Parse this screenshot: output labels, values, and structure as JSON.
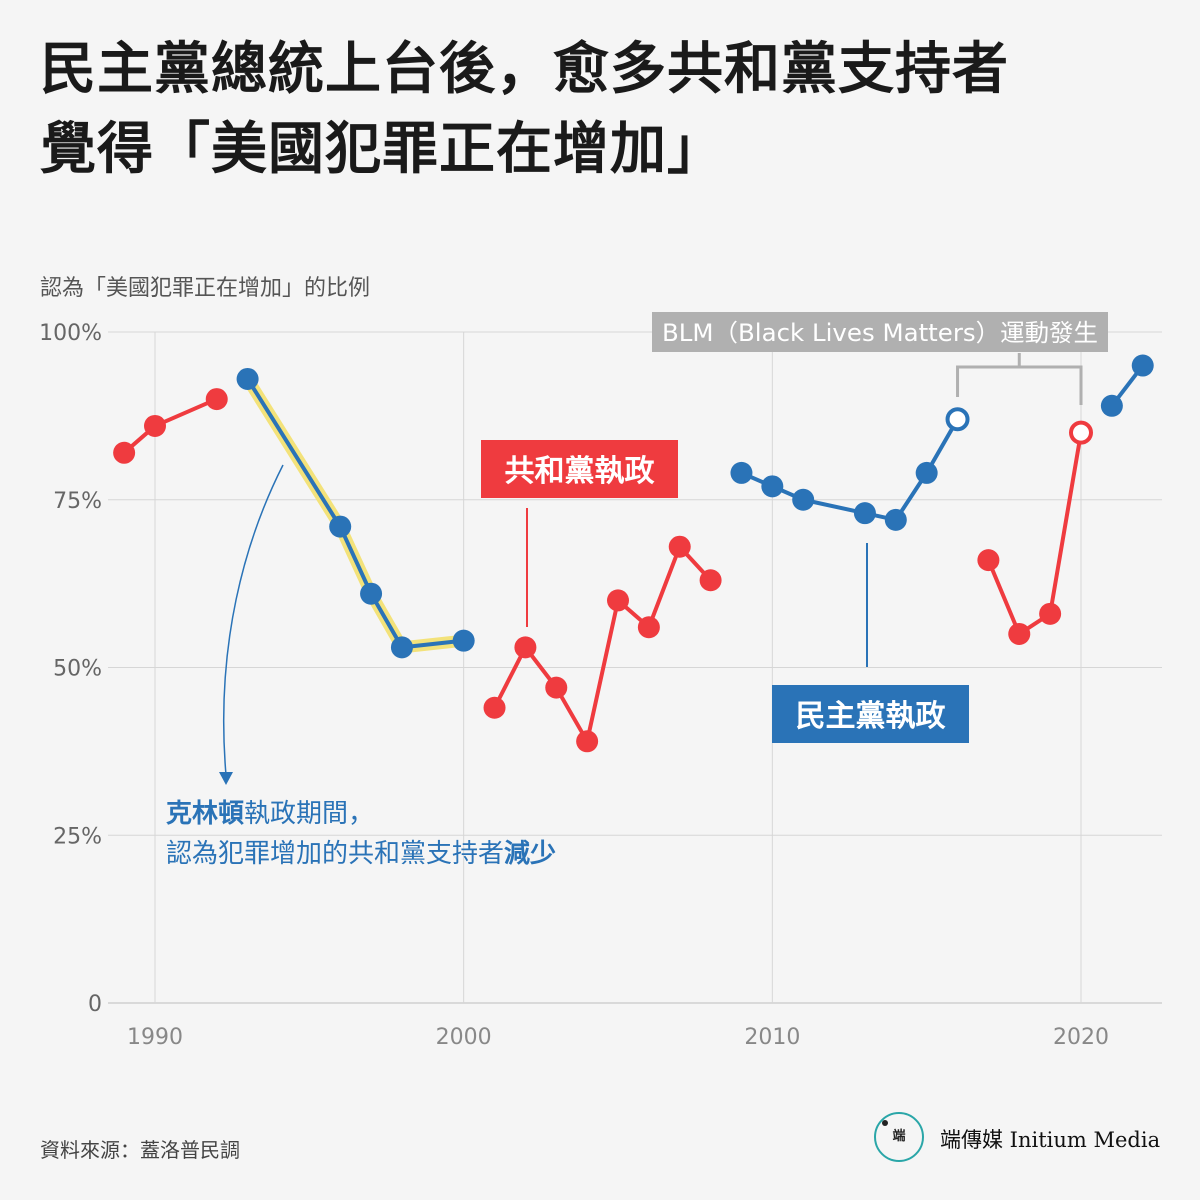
{
  "title_lines": [
    "民主黨總統上台後，愈多共和黨支持者",
    "覺得「美國犯罪正在增加」"
  ],
  "subtitle": "認為「美國犯罪正在增加」的比例",
  "source": "資料來源：蓋洛普民調",
  "brand": {
    "logo_mark": "端",
    "name": "端傳媒 Initium Media"
  },
  "colors": {
    "republican": "#ef3b3f",
    "democrat": "#2a73b7",
    "highlight": "#f3e27a",
    "grid": "#d6d6d6",
    "annotation_gray": "#b0b0b0"
  },
  "annotations": {
    "republican_label": "共和黨執政",
    "democrat_label": "民主黨執政",
    "blm_label": "BLM（Black Lives Matters）運動發生",
    "clinton_note": {
      "line1_bold": "克林頓",
      "line1_rest": "執政期間，",
      "line2_rest": "認為犯罪增加的共和黨支持者",
      "line2_bold": "減少"
    }
  },
  "chart_data": {
    "type": "line",
    "title": "民主黨總統上台後，愈多共和黨支持者覺得「美國犯罪正在增加」",
    "ylabel": "認為「美國犯罪正在增加」的比例",
    "xlabel": "",
    "xlim": [
      1989,
      2022.6
    ],
    "ylim": [
      0,
      100
    ],
    "x_ticks": [
      1990,
      2000,
      2010,
      2020
    ],
    "y_ticks": [
      0,
      25,
      50,
      75,
      100
    ],
    "y_tick_labels": [
      "0",
      "25%",
      "50%",
      "75%",
      "100%"
    ],
    "grid": true,
    "series": [
      {
        "party": "republican",
        "points": [
          {
            "x": 1989,
            "y": 82
          },
          {
            "x": 1990,
            "y": 86
          },
          {
            "x": 1992,
            "y": 90
          }
        ]
      },
      {
        "party": "democrat",
        "highlight": true,
        "points": [
          {
            "x": 1993,
            "y": 93
          },
          {
            "x": 1996,
            "y": 71
          },
          {
            "x": 1997,
            "y": 61
          },
          {
            "x": 1998,
            "y": 53
          },
          {
            "x": 2000,
            "y": 54
          }
        ]
      },
      {
        "party": "republican",
        "points": [
          {
            "x": 2001,
            "y": 44
          },
          {
            "x": 2002,
            "y": 53
          },
          {
            "x": 2003,
            "y": 47
          },
          {
            "x": 2004,
            "y": 39
          },
          {
            "x": 2005,
            "y": 60
          },
          {
            "x": 2006,
            "y": 56
          },
          {
            "x": 2007,
            "y": 68
          },
          {
            "x": 2008,
            "y": 63
          }
        ]
      },
      {
        "party": "democrat",
        "points": [
          {
            "x": 2009,
            "y": 79
          },
          {
            "x": 2010,
            "y": 77
          },
          {
            "x": 2011,
            "y": 75
          },
          {
            "x": 2013,
            "y": 73
          },
          {
            "x": 2014,
            "y": 72
          },
          {
            "x": 2015,
            "y": 79
          },
          {
            "x": 2016,
            "y": 87,
            "open": true
          }
        ]
      },
      {
        "party": "republican",
        "points": [
          {
            "x": 2017,
            "y": 66
          },
          {
            "x": 2018,
            "y": 55
          },
          {
            "x": 2019,
            "y": 58
          },
          {
            "x": 2020,
            "y": 85,
            "open": true
          }
        ]
      },
      {
        "party": "democrat",
        "points": [
          {
            "x": 2021,
            "y": 89
          },
          {
            "x": 2022,
            "y": 95
          }
        ]
      }
    ]
  }
}
